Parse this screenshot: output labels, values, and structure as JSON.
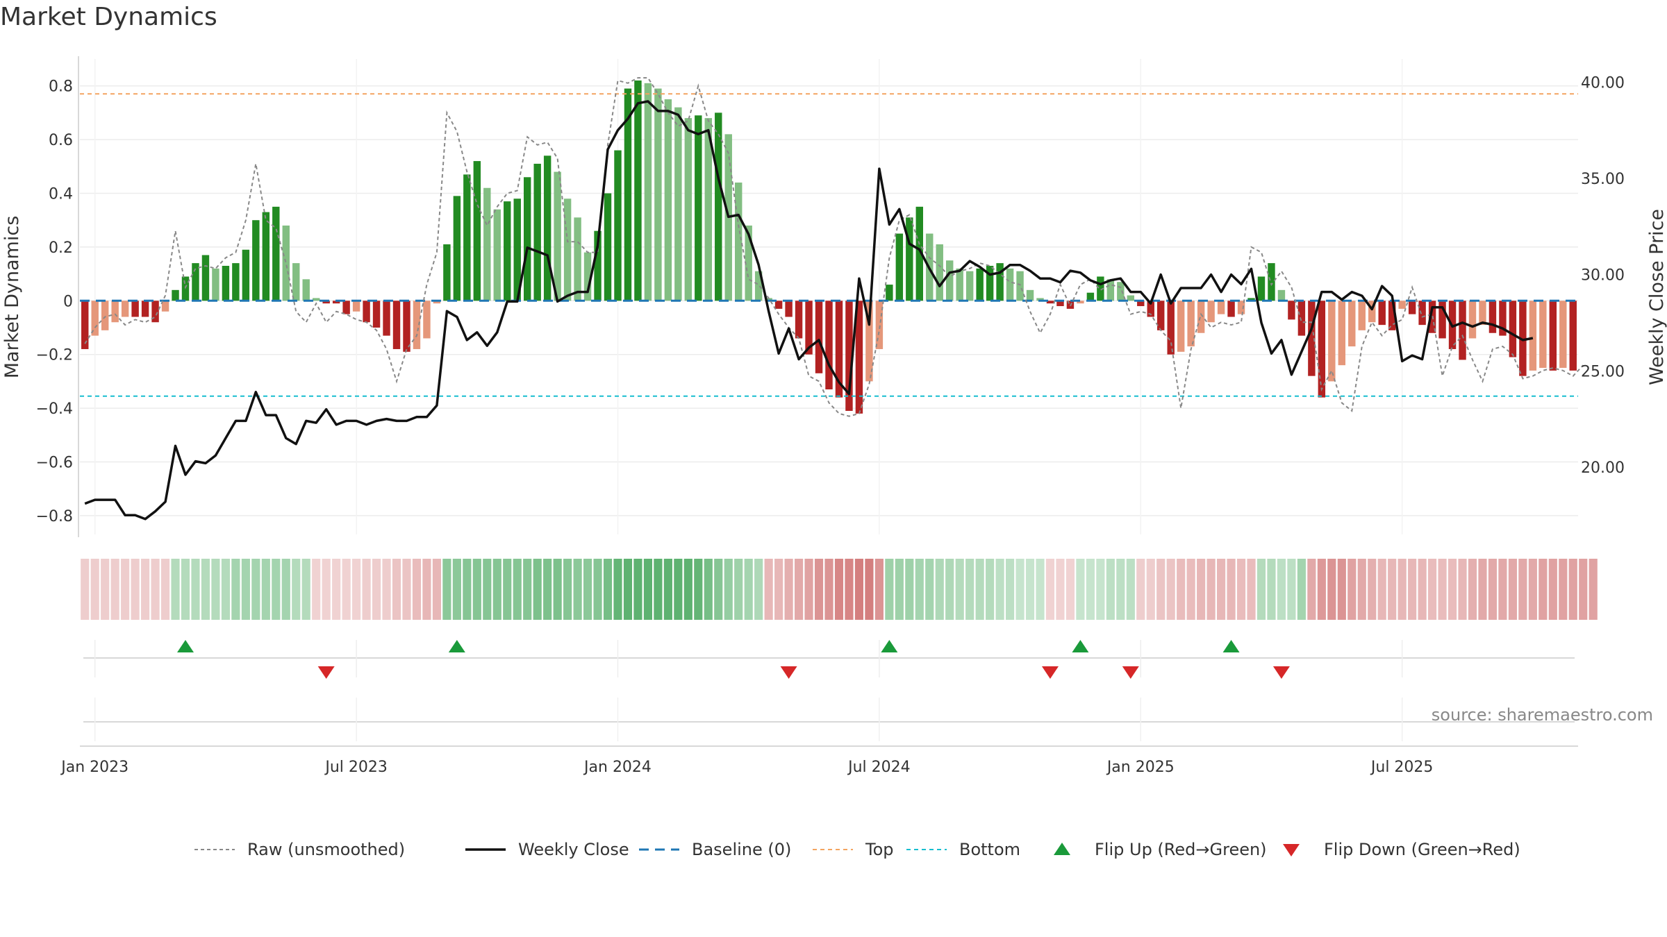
{
  "chart_data": {
    "type": "bar",
    "title": "Market Dynamics",
    "ylabel": "Market Dynamics",
    "y2label": "Weekly Close Price",
    "ylim": [
      -0.87,
      0.9
    ],
    "y2lim": [
      16.5,
      41.2
    ],
    "y_ticks": [
      "−0.8",
      "−0.6",
      "−0.4",
      "−0.2",
      "0",
      "0.2",
      "0.4",
      "0.6",
      "0.8"
    ],
    "y_tick_values": [
      -0.8,
      -0.6,
      -0.4,
      -0.2,
      0,
      0.2,
      0.4,
      0.6,
      0.8
    ],
    "y2_ticks": [
      "20.00",
      "25.00",
      "30.00",
      "35.00",
      "40.00"
    ],
    "y2_tick_values": [
      20,
      25,
      30,
      35,
      40
    ],
    "x_ticks": [
      "Jan 2023",
      "Jul 2023",
      "Jan 2024",
      "Jul 2024",
      "Jan 2025",
      "Jul 2025"
    ],
    "x_tick_weeks": [
      1,
      27,
      53,
      79,
      105,
      131
    ],
    "top_level": 0.77,
    "bottom_level": -0.355,
    "baseline": 0,
    "week_start": "2022-12-26",
    "market_dynamics": [
      -0.18,
      -0.13,
      -0.11,
      -0.08,
      -0.06,
      -0.06,
      -0.06,
      -0.08,
      -0.04,
      0.04,
      0.09,
      0.14,
      0.17,
      0.12,
      0.13,
      0.14,
      0.19,
      0.3,
      0.33,
      0.35,
      0.28,
      0.14,
      0.08,
      0.01,
      -0.01,
      -0.01,
      -0.05,
      -0.04,
      -0.08,
      -0.1,
      -0.13,
      -0.18,
      -0.19,
      -0.18,
      -0.14,
      -0.01,
      0.21,
      0.39,
      0.47,
      0.52,
      0.42,
      0.34,
      0.37,
      0.38,
      0.46,
      0.51,
      0.54,
      0.48,
      0.38,
      0.31,
      0.18,
      0.26,
      0.4,
      0.56,
      0.79,
      0.82,
      0.81,
      0.79,
      0.75,
      0.72,
      0.68,
      0.69,
      0.68,
      0.7,
      0.62,
      0.44,
      0.28,
      0.11,
      0.01,
      -0.03,
      -0.06,
      -0.14,
      -0.2,
      -0.27,
      -0.33,
      -0.36,
      -0.41,
      -0.42,
      -0.3,
      -0.18,
      0.06,
      0.25,
      0.31,
      0.35,
      0.25,
      0.21,
      0.15,
      0.12,
      0.11,
      0.12,
      0.13,
      0.14,
      0.12,
      0.11,
      0.04,
      0.01,
      -0.01,
      -0.02,
      -0.03,
      -0.01,
      0.03,
      0.09,
      0.08,
      0.07,
      0.02,
      -0.02,
      -0.06,
      -0.11,
      -0.2,
      -0.19,
      -0.17,
      -0.12,
      -0.08,
      -0.05,
      -0.06,
      -0.05,
      0.01,
      0.09,
      0.14,
      0.04,
      -0.07,
      -0.13,
      -0.28,
      -0.36,
      -0.3,
      -0.24,
      -0.17,
      -0.11,
      -0.08,
      -0.09,
      -0.11,
      -0.03,
      -0.05,
      -0.09,
      -0.12,
      -0.14,
      -0.18,
      -0.22,
      -0.14,
      -0.09,
      -0.12,
      -0.13,
      -0.21,
      -0.28,
      -0.26,
      -0.25,
      -0.26,
      -0.25,
      -0.26
    ],
    "raw_unsmoothed": [
      -0.16,
      -0.1,
      -0.06,
      -0.05,
      -0.09,
      -0.07,
      -0.08,
      -0.06,
      0.02,
      0.26,
      0.05,
      0.12,
      0.13,
      0.12,
      0.16,
      0.18,
      0.3,
      0.51,
      0.3,
      0.27,
      0.14,
      -0.04,
      -0.08,
      -0.01,
      -0.08,
      -0.04,
      -0.05,
      -0.07,
      -0.08,
      -0.11,
      -0.18,
      -0.3,
      -0.18,
      -0.13,
      0.06,
      0.18,
      0.7,
      0.63,
      0.48,
      0.36,
      0.28,
      0.35,
      0.4,
      0.41,
      0.61,
      0.58,
      0.59,
      0.53,
      0.22,
      0.22,
      0.18,
      0.18,
      0.58,
      0.82,
      0.81,
      0.83,
      0.83,
      0.77,
      0.7,
      0.65,
      0.67,
      0.8,
      0.67,
      0.62,
      0.55,
      0.28,
      0.08,
      0.06,
      0.01,
      -0.05,
      -0.1,
      -0.14,
      -0.28,
      -0.3,
      -0.38,
      -0.42,
      -0.43,
      -0.42,
      -0.31,
      -0.11,
      0.16,
      0.3,
      0.32,
      0.21,
      0.16,
      0.13,
      0.09,
      0.11,
      0.12,
      0.14,
      0.13,
      0.1,
      0.07,
      0.06,
      -0.04,
      -0.12,
      -0.05,
      0.06,
      -0.02,
      0.06,
      0.08,
      0.04,
      0.06,
      0.05,
      -0.05,
      -0.04,
      -0.05,
      -0.11,
      -0.15,
      -0.4,
      -0.18,
      -0.05,
      -0.1,
      -0.08,
      -0.09,
      -0.08,
      0.2,
      0.18,
      0.06,
      0.11,
      0.05,
      -0.08,
      -0.08,
      -0.33,
      -0.26,
      -0.38,
      -0.41,
      -0.17,
      -0.08,
      -0.13,
      -0.09,
      -0.07,
      0.05,
      -0.06,
      -0.05,
      -0.28,
      -0.17,
      -0.13,
      -0.22,
      -0.3,
      -0.18,
      -0.17,
      -0.2,
      -0.29,
      -0.28,
      -0.26,
      -0.25,
      -0.26,
      -0.28,
      -0.24
    ],
    "weekly_close": [
      18.1,
      18.3,
      18.3,
      18.3,
      17.5,
      17.5,
      17.3,
      17.7,
      18.2,
      21.1,
      19.6,
      20.3,
      20.2,
      20.6,
      21.5,
      22.4,
      22.4,
      23.9,
      22.7,
      22.7,
      21.5,
      21.2,
      22.4,
      22.3,
      23.0,
      22.2,
      22.4,
      22.4,
      22.2,
      22.4,
      22.5,
      22.4,
      22.4,
      22.6,
      22.6,
      23.2,
      28.1,
      27.8,
      26.6,
      27.0,
      26.3,
      27.0,
      28.6,
      28.6,
      31.4,
      31.2,
      31.0,
      28.6,
      28.9,
      29.1,
      29.1,
      31.5,
      36.5,
      37.5,
      38.1,
      38.9,
      39.0,
      38.5,
      38.5,
      38.3,
      37.5,
      37.3,
      37.5,
      35.0,
      33.0,
      33.1,
      32.1,
      30.5,
      28.1,
      25.9,
      27.2,
      25.6,
      26.2,
      26.6,
      25.3,
      24.4,
      23.8,
      29.8,
      27.4,
      35.5,
      32.6,
      33.4,
      31.6,
      31.3,
      30.3,
      29.4,
      30.1,
      30.2,
      30.7,
      30.4,
      30.0,
      30.1,
      30.5,
      30.5,
      30.2,
      29.8,
      29.8,
      29.6,
      30.2,
      30.1,
      29.7,
      29.5,
      29.7,
      29.8,
      29.1,
      29.1,
      28.5,
      30.0,
      28.5,
      29.3,
      29.3,
      29.3,
      30.0,
      29.1,
      30.0,
      29.5,
      30.3,
      27.5,
      25.9,
      26.6,
      24.8,
      26.0,
      27.2,
      29.1,
      29.1,
      28.7,
      29.1,
      28.9,
      28.2,
      29.4,
      28.9,
      25.5,
      25.8,
      25.6,
      28.3,
      28.3,
      27.3,
      27.5,
      27.3,
      27.5,
      27.4,
      27.2,
      26.9,
      26.6,
      26.7
    ],
    "regime_strength": [
      0.2,
      0.2,
      0.2,
      0.2,
      0.2,
      0.2,
      0.2,
      0.2,
      0.2,
      0.3,
      0.3,
      0.3,
      0.3,
      0.3,
      0.3,
      0.4,
      0.4,
      0.4,
      0.4,
      0.4,
      0.4,
      0.3,
      0.3,
      0.15,
      0.15,
      0.15,
      0.15,
      0.15,
      0.2,
      0.2,
      0.2,
      0.25,
      0.25,
      0.3,
      0.35,
      0.35,
      0.55,
      0.55,
      0.6,
      0.6,
      0.6,
      0.6,
      0.6,
      0.6,
      0.6,
      0.65,
      0.65,
      0.65,
      0.6,
      0.55,
      0.55,
      0.6,
      0.7,
      0.8,
      0.85,
      0.85,
      0.85,
      0.85,
      0.85,
      0.85,
      0.85,
      0.8,
      0.7,
      0.6,
      0.5,
      0.45,
      0.4,
      0.35,
      0.35,
      0.35,
      0.4,
      0.45,
      0.5,
      0.6,
      0.6,
      0.7,
      0.7,
      0.75,
      0.75,
      0.6,
      0.45,
      0.45,
      0.45,
      0.4,
      0.4,
      0.35,
      0.35,
      0.3,
      0.3,
      0.3,
      0.3,
      0.25,
      0.25,
      0.2,
      0.2,
      0.2,
      0.15,
      0.15,
      0.15,
      0.2,
      0.2,
      0.2,
      0.25,
      0.25,
      0.25,
      0.2,
      0.2,
      0.25,
      0.25,
      0.3,
      0.3,
      0.35,
      0.35,
      0.35,
      0.35,
      0.3,
      0.3,
      0.3,
      0.3,
      0.25,
      0.25,
      0.4,
      0.45,
      0.55,
      0.6,
      0.6,
      0.5,
      0.45,
      0.4,
      0.35,
      0.35,
      0.35,
      0.35,
      0.35,
      0.3,
      0.3,
      0.3,
      0.35,
      0.4,
      0.45,
      0.45,
      0.45,
      0.45,
      0.45,
      0.45,
      0.5,
      0.5,
      0.5,
      0.5,
      0.5,
      0.5
    ],
    "regime_sign": [
      -1,
      -1,
      -1,
      -1,
      -1,
      -1,
      -1,
      -1,
      -1,
      1,
      1,
      1,
      1,
      1,
      1,
      1,
      1,
      1,
      1,
      1,
      1,
      1,
      1,
      -1,
      -1,
      -1,
      -1,
      -1,
      -1,
      -1,
      -1,
      -1,
      -1,
      -1,
      -1,
      -1,
      1,
      1,
      1,
      1,
      1,
      1,
      1,
      1,
      1,
      1,
      1,
      1,
      1,
      1,
      1,
      1,
      1,
      1,
      1,
      1,
      1,
      1,
      1,
      1,
      1,
      1,
      1,
      1,
      1,
      1,
      1,
      1,
      -1,
      -1,
      -1,
      -1,
      -1,
      -1,
      -1,
      -1,
      -1,
      -1,
      -1,
      -1,
      1,
      1,
      1,
      1,
      1,
      1,
      1,
      1,
      1,
      1,
      1,
      1,
      1,
      1,
      1,
      1,
      -1,
      -1,
      -1,
      1,
      1,
      1,
      1,
      1,
      1,
      -1,
      -1,
      -1,
      -1,
      -1,
      -1,
      -1,
      -1,
      -1,
      -1,
      -1,
      -1,
      1,
      1,
      1,
      1,
      1,
      -1,
      -1,
      -1,
      -1,
      -1,
      -1,
      -1,
      -1,
      -1,
      -1,
      -1,
      -1,
      -1,
      -1,
      -1,
      -1,
      -1,
      -1,
      -1,
      -1,
      -1,
      -1,
      -1,
      -1,
      -1,
      -1,
      -1,
      -1,
      -1
    ],
    "flip_up_weeks": [
      10,
      37,
      80,
      99,
      114
    ],
    "flip_down_weeks": [
      24,
      70,
      96,
      104,
      119
    ],
    "colors": {
      "pos_strong": "#228b22",
      "pos_weak": "#82be82",
      "neg_strong": "#b22222",
      "neg_weak": "#e5977a",
      "raw_line": "#888888",
      "close_line": "#111111",
      "baseline": "#1f77b4",
      "top": "#f4a460",
      "bottom": "#17becf",
      "flip_up": "#1a9a3a",
      "flip_down": "#d62728",
      "grid": "#ececec"
    },
    "legend": [
      {
        "key": "raw",
        "label": "Raw (unsmoothed)"
      },
      {
        "key": "close",
        "label": "Weekly Close"
      },
      {
        "key": "baseline",
        "label": "Baseline (0)"
      },
      {
        "key": "top",
        "label": "Top"
      },
      {
        "key": "bottom",
        "label": "Bottom"
      },
      {
        "key": "flipup",
        "label": "Flip Up (Red→Green)"
      },
      {
        "key": "flipdown",
        "label": "Flip Down (Green→Red)"
      }
    ],
    "legend_placement": "bottom-center"
  },
  "source_text": "source: sharemaestro.com"
}
